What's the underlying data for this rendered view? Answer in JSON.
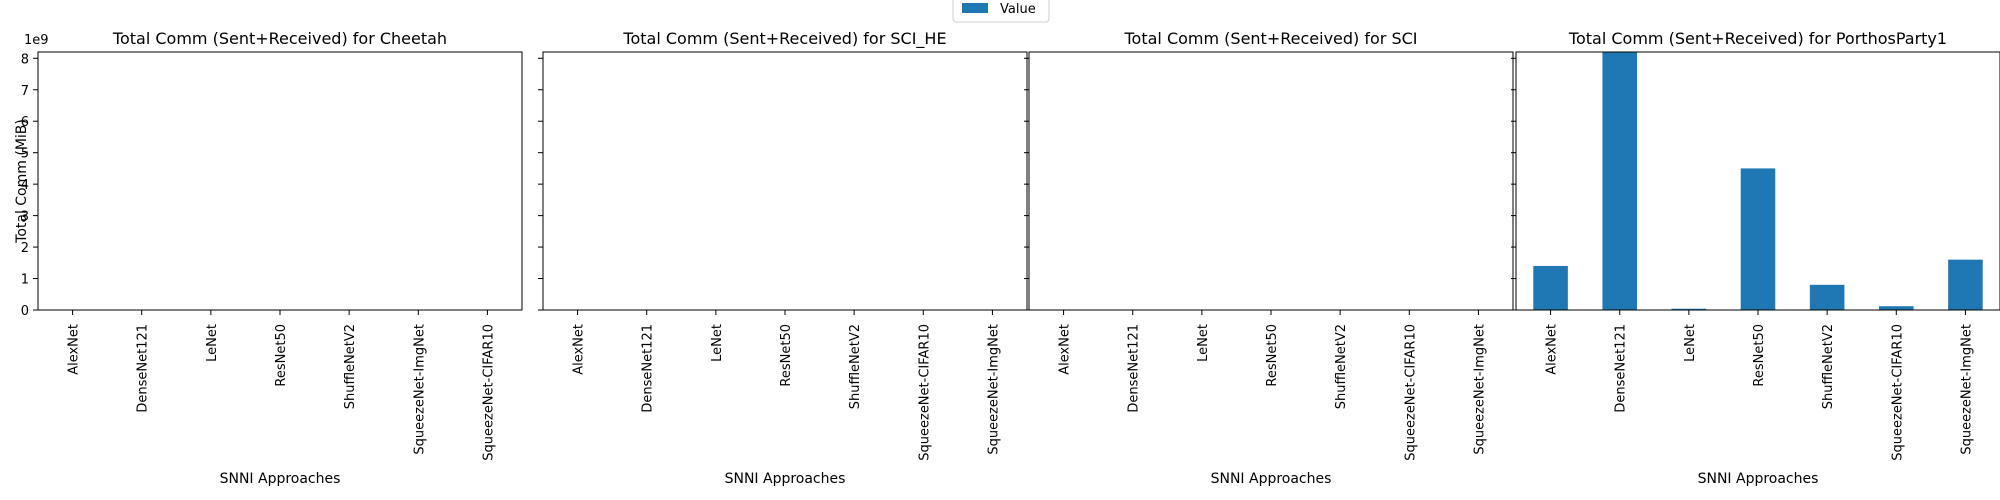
{
  "figure": {
    "legend": {
      "label": "Value",
      "placement": "top-center",
      "color": "#1f77b4"
    },
    "y_offset_label": "1e9"
  },
  "chart_data": [
    {
      "type": "bar",
      "title": "Total Comm (Sent+Received) for Cheetah",
      "xlabel": "SNNI Approaches",
      "ylabel": "Total Comm (MiB)",
      "categories": [
        "AlexNet",
        "DenseNet121",
        "LeNet",
        "ResNet50",
        "ShuffleNetV2",
        "SqueezeNet-ImgNet",
        "SqueezeNet-CIFAR10"
      ],
      "series": [
        {
          "name": "Value",
          "values": [
            0,
            0,
            0,
            0,
            0,
            0,
            0
          ]
        }
      ],
      "ylim": [
        0,
        8200000000
      ],
      "yticks": [
        0,
        1000000000,
        2000000000,
        3000000000,
        4000000000,
        5000000000,
        6000000000,
        7000000000,
        8000000000
      ],
      "ytick_labels": [
        "0",
        "1",
        "2",
        "3",
        "4",
        "5",
        "6",
        "7",
        "8"
      ],
      "grid": false
    },
    {
      "type": "bar",
      "title": "Total Comm (Sent+Received) for SCI_HE",
      "xlabel": "SNNI Approaches",
      "ylabel": "",
      "categories": [
        "AlexNet",
        "DenseNet121",
        "LeNet",
        "ResNet50",
        "ShuffleNetV2",
        "SqueezeNet-CIFAR10",
        "SqueezeNet-ImgNet"
      ],
      "series": [
        {
          "name": "Value",
          "values": [
            0,
            0,
            0,
            0,
            0,
            0,
            0
          ]
        }
      ],
      "ylim": [
        0,
        8200000000
      ],
      "yticks": [
        0,
        1000000000,
        2000000000,
        3000000000,
        4000000000,
        5000000000,
        6000000000,
        7000000000,
        8000000000
      ],
      "ytick_labels": [],
      "grid": false
    },
    {
      "type": "bar",
      "title": "Total Comm (Sent+Received) for SCI",
      "xlabel": "SNNI Approaches",
      "ylabel": "",
      "categories": [
        "AlexNet",
        "DenseNet121",
        "LeNet",
        "ResNet50",
        "ShuffleNetV2",
        "SqueezeNet-CIFAR10",
        "SqueezeNet-ImgNet"
      ],
      "series": [
        {
          "name": "Value",
          "values": [
            0,
            0,
            0,
            0,
            0,
            0,
            0
          ]
        }
      ],
      "ylim": [
        0,
        8200000000
      ],
      "yticks": [
        0,
        1000000000,
        2000000000,
        3000000000,
        4000000000,
        5000000000,
        6000000000,
        7000000000,
        8000000000
      ],
      "ytick_labels": [],
      "grid": false
    },
    {
      "type": "bar",
      "title": "Total Comm (Sent+Received) for PorthosParty1",
      "xlabel": "SNNI Approaches",
      "ylabel": "",
      "categories": [
        "AlexNet",
        "DenseNet121",
        "LeNet",
        "ResNet50",
        "ShuffleNetV2",
        "SqueezeNet-CIFAR10",
        "SqueezeNet-ImgNet"
      ],
      "series": [
        {
          "name": "Value",
          "values": [
            1400000000,
            8200000000,
            40000000,
            4500000000,
            800000000,
            120000000,
            1600000000
          ]
        }
      ],
      "ylim": [
        0,
        8200000000
      ],
      "yticks": [
        0,
        1000000000,
        2000000000,
        3000000000,
        4000000000,
        5000000000,
        6000000000,
        7000000000,
        8000000000
      ],
      "ytick_labels": [],
      "grid": false
    }
  ]
}
